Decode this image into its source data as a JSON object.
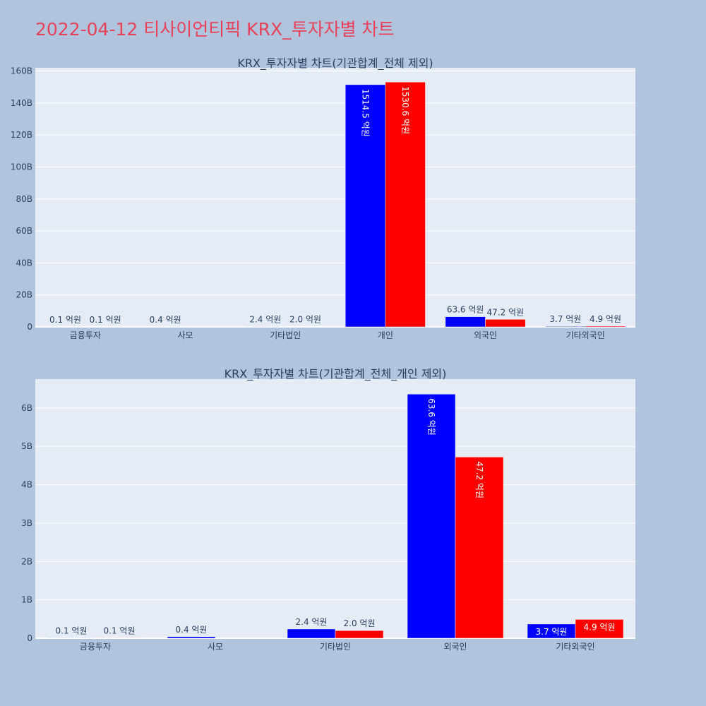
{
  "page_title": "2022-04-12 티사이언티픽 KRX_투자자별 차트",
  "colors": {
    "background": "#b0c4de",
    "plot_bg": "#e5ecf6",
    "title": "#e8425a",
    "series_a": "#0000ff",
    "series_b": "#ff0000",
    "text": "#2a3f5f"
  },
  "chart_data": [
    {
      "type": "bar",
      "title": "KRX_투자자별 차트(기관합계_전체 제외)",
      "categories": [
        "금융투자",
        "사모",
        "기타법인",
        "개인",
        "외국인",
        "기타외국인"
      ],
      "ylim": [
        0,
        162000000000
      ],
      "yticks": [
        0,
        20000000000,
        40000000000,
        60000000000,
        80000000000,
        100000000000,
        120000000000,
        140000000000,
        160000000000
      ],
      "ytick_labels": [
        "0",
        "20B",
        "40B",
        "60B",
        "80B",
        "100B",
        "120B",
        "140B",
        "160B"
      ],
      "grid": true,
      "series": [
        {
          "color": "#0000ff",
          "values": [
            10000000,
            40000000,
            240000000,
            151450000000,
            6360000000,
            370000000
          ],
          "labels": [
            "0.1 억원",
            "0.4 억원",
            "2.4 억원",
            "1514.5 억원",
            "63.6 억원",
            "3.7 억원"
          ]
        },
        {
          "color": "#ff0000",
          "values": [
            10000000,
            0,
            200000000,
            153060000000,
            4720000000,
            490000000
          ],
          "labels": [
            "0.1 억원",
            "",
            "2.0 억원",
            "1530.6 억원",
            "47.2 억원",
            "4.9 억원"
          ]
        }
      ]
    },
    {
      "type": "bar",
      "title": "KRX_투자자별 차트(기관합계_전체_개인 제외)",
      "categories": [
        "금융투자",
        "사모",
        "기타법인",
        "외국인",
        "기타외국인"
      ],
      "ylim": [
        0,
        6750000000
      ],
      "yticks": [
        0,
        1000000000,
        2000000000,
        3000000000,
        4000000000,
        5000000000,
        6000000000
      ],
      "ytick_labels": [
        "0",
        "1B",
        "2B",
        "3B",
        "4B",
        "5B",
        "6B"
      ],
      "grid": true,
      "series": [
        {
          "color": "#0000ff",
          "values": [
            10000000,
            40000000,
            240000000,
            6360000000,
            370000000
          ],
          "labels": [
            "0.1 억원",
            "0.4 억원",
            "2.4 억원",
            "63.6 억원",
            "3.7 억원"
          ]
        },
        {
          "color": "#ff0000",
          "values": [
            10000000,
            0,
            200000000,
            4720000000,
            490000000
          ],
          "labels": [
            "0.1 억원",
            "",
            "2.0 억원",
            "47.2 억원",
            "4.9 억원"
          ]
        }
      ]
    }
  ]
}
